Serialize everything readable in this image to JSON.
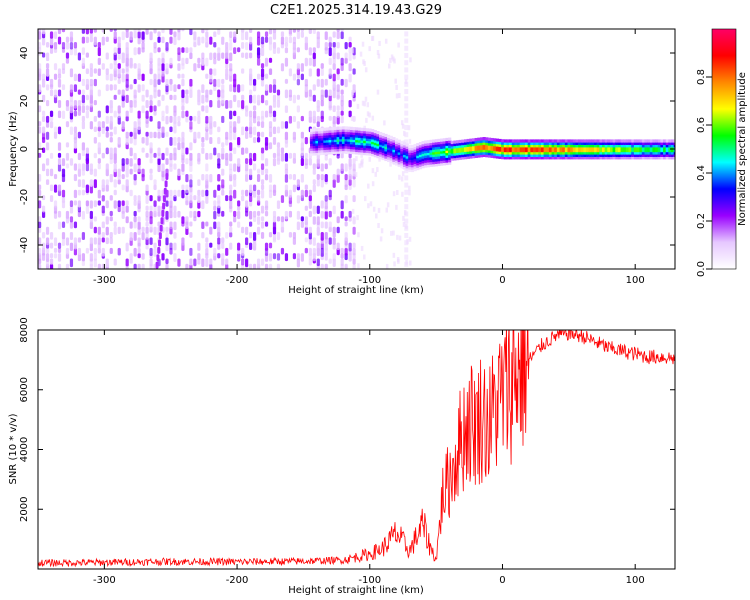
{
  "title": "C2E1.2025.314.19.43.G29",
  "colors": {
    "snr_line": "#ff0000",
    "axis": "#000000",
    "background": "#ffffff"
  },
  "chart_data": [
    {
      "type": "heatmap",
      "xlabel": "Height of straight line (km)",
      "ylabel": "Frequency (Hz)",
      "xlim": [
        -350,
        130
      ],
      "ylim": [
        -50,
        50
      ],
      "x_ticks": [
        -300,
        -200,
        -100,
        0,
        100
      ],
      "y_ticks": [
        -40,
        -20,
        0,
        20,
        40
      ],
      "grid": false,
      "colorbar": {
        "label": "Normalized spectral amplitude",
        "range": [
          0,
          1
        ],
        "ticks": [
          0.0,
          0.2,
          0.4,
          0.6,
          0.8
        ],
        "colormap": [
          "#ffffff",
          "#e6c8ff",
          "#9900ff",
          "#0000ff",
          "#00ffff",
          "#00ff00",
          "#ffff00",
          "#ff8800",
          "#ff0000",
          "#ff0066"
        ]
      },
      "noise_region": {
        "x_range": [
          -350,
          -110
        ],
        "amplitude": 0.15
      },
      "ridge": [
        {
          "x": -145,
          "f": 3,
          "a": 0.35
        },
        {
          "x": -120,
          "f": 4,
          "a": 0.45
        },
        {
          "x": -100,
          "f": 3,
          "a": 0.5
        },
        {
          "x": -85,
          "f": 0,
          "a": 0.4
        },
        {
          "x": -70,
          "f": -4,
          "a": 0.35
        },
        {
          "x": -60,
          "f": -2,
          "a": 0.5
        },
        {
          "x": -45,
          "f": -1,
          "a": 0.6
        },
        {
          "x": -30,
          "f": 0,
          "a": 0.75
        },
        {
          "x": -15,
          "f": 1,
          "a": 0.85
        },
        {
          "x": 0,
          "f": 0,
          "a": 0.95
        },
        {
          "x": 30,
          "f": 0,
          "a": 0.9
        },
        {
          "x": 60,
          "f": 0,
          "a": 0.8
        },
        {
          "x": 90,
          "f": 0,
          "a": 0.65
        },
        {
          "x": 130,
          "f": 0,
          "a": 0.55
        }
      ]
    },
    {
      "type": "line",
      "xlabel": "Height of straight line (km)",
      "ylabel": "SNR (10 * v/v)",
      "xlim": [
        -350,
        130
      ],
      "ylim": [
        0,
        8000
      ],
      "x_ticks": [
        -300,
        -200,
        -100,
        0,
        100
      ],
      "y_ticks": [
        2000,
        4000,
        6000,
        8000
      ],
      "grid": false,
      "series": [
        {
          "color": "#ff0000",
          "x": [
            -350,
            -300,
            -250,
            -200,
            -150,
            -120,
            -100,
            -90,
            -80,
            -70,
            -60,
            -55,
            -50,
            -45,
            -40,
            -35,
            -30,
            -25,
            -20,
            -15,
            -10,
            -5,
            0,
            5,
            10,
            15,
            20,
            30,
            40,
            50,
            60,
            70,
            80,
            90,
            100,
            110,
            120,
            130
          ],
          "values": [
            200,
            220,
            250,
            240,
            260,
            300,
            500,
            700,
            1200,
            600,
            1500,
            800,
            300,
            2500,
            3000,
            3800,
            4500,
            5000,
            4800,
            5200,
            4800,
            5500,
            5800,
            6200,
            6600,
            6800,
            7000,
            7500,
            7800,
            7900,
            7800,
            7600,
            7400,
            7300,
            7200,
            7100,
            7100,
            7050
          ]
        }
      ]
    }
  ]
}
